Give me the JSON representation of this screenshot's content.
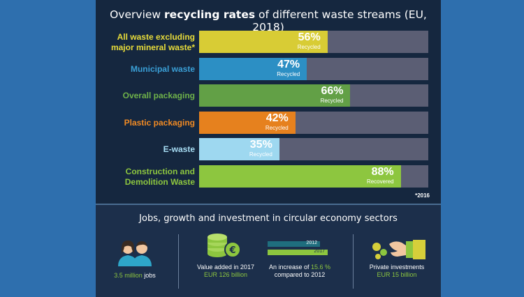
{
  "chart_data": {
    "type": "bar",
    "orientation": "horizontal",
    "title_prefix": "Overview",
    "title_bold": "recycling rates",
    "title_suffix": "of different waste streams (EU, 2018)",
    "categories": [
      "All waste excluding major mineral waste*",
      "Municipal waste",
      "Overall packaging",
      "Plastic packaging",
      "E-waste",
      "Construction and Demolition Waste"
    ],
    "category_lines": [
      [
        "All waste excluding",
        "major mineral waste*"
      ],
      [
        "Municipal waste"
      ],
      [
        "Overall packaging"
      ],
      [
        "Plastic packaging"
      ],
      [
        "E-waste"
      ],
      [
        "Construction and",
        "Demolition Waste"
      ]
    ],
    "values": [
      56,
      47,
      66,
      42,
      35,
      88
    ],
    "value_labels": [
      "56%",
      "47%",
      "66%",
      "42%",
      "35%",
      "88%"
    ],
    "sublabels": [
      "Recycled",
      "Recycled",
      "Recycled",
      "Recycled",
      "Recycled",
      "Recovered"
    ],
    "colors": [
      "#d8cc35",
      "#2c8fc4",
      "#62a046",
      "#e6811e",
      "#9ed8f0",
      "#8dc63f"
    ],
    "label_colors": [
      "#e8dc3a",
      "#3a9fd6",
      "#6fb24a",
      "#f08a24",
      "#a8def5",
      "#8dc63f"
    ],
    "track_color": "#5b5e74",
    "xlim": [
      0,
      100
    ],
    "footnote": "*2016"
  },
  "bottom": {
    "title": "Jobs, growth and investment in circular economy sectors",
    "jobs": {
      "value": "3.5 million",
      "suffix": "jobs"
    },
    "value_added": {
      "line1": "Value added in 2017",
      "line2": "EUR 126 billion"
    },
    "increase": {
      "bar_2012_label": "2012",
      "bar_2017_label": "2017",
      "prefix": "An increase of",
      "percent": "15.6 %",
      "suffix": "compared to 2012"
    },
    "investments": {
      "line1": "Private investments",
      "line2": "EUR 15 billion"
    },
    "colors": {
      "highlight": "#8dc63f",
      "bar_2012": "#1f6e7e",
      "bar_2017": "#8dc63f"
    }
  }
}
